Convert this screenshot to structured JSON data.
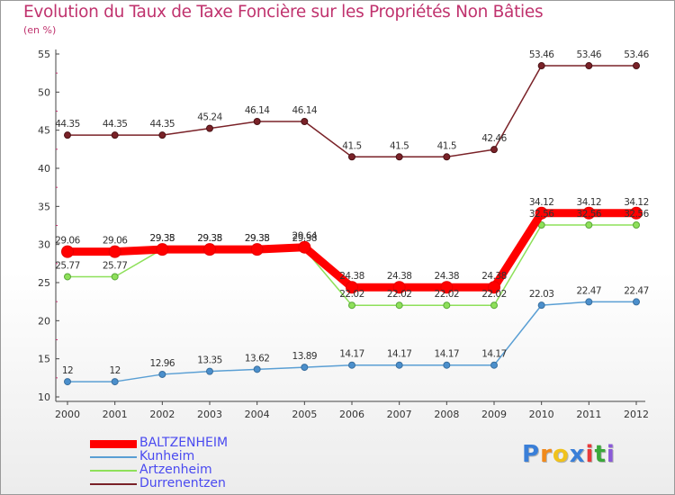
{
  "chart_data": {
    "type": "line",
    "title": "Evolution du Taux de Taxe Foncière sur les Propriétés Non Bâties",
    "ylabel": "(en %)",
    "xlabel": "",
    "ylim": [
      10,
      55
    ],
    "yticks": [
      10,
      15,
      20,
      25,
      30,
      35,
      40,
      45,
      50,
      55
    ],
    "x": [
      2000,
      2001,
      2002,
      2003,
      2004,
      2005,
      2006,
      2007,
      2008,
      2009,
      2010,
      2011,
      2012
    ],
    "grid": false,
    "legend_position": "bottom-left",
    "series": [
      {
        "name": "BALTZENHEIM",
        "color": "#ff0000",
        "values": [
          29.06,
          29.06,
          29.35,
          29.35,
          29.35,
          29.64,
          24.38,
          24.38,
          24.38,
          24.38,
          34.12,
          34.12,
          34.12
        ],
        "labels": [
          "29.06",
          "29.06",
          "29.35",
          "29.35",
          "29.35",
          "29.64",
          "24.38",
          "24.38",
          "24.38",
          "24.38",
          "34.12",
          "34.12",
          "34.12"
        ]
      },
      {
        "name": "Kunheim",
        "color": "#5a9fd4",
        "values": [
          12,
          12,
          12.96,
          13.35,
          13.62,
          13.89,
          14.17,
          14.17,
          14.17,
          14.17,
          22.03,
          22.47,
          22.47
        ],
        "labels": [
          "12",
          "12",
          "12.96",
          "13.35",
          "13.62",
          "13.89",
          "14.17",
          "14.17",
          "14.17",
          "14.17",
          "22.03",
          "22.47",
          "22.47"
        ]
      },
      {
        "name": "Artzenheim",
        "color": "#8ee05a",
        "values": [
          25.77,
          25.77,
          29.38,
          29.38,
          29.38,
          29.38,
          22.02,
          22.02,
          22.02,
          22.02,
          32.56,
          32.56,
          32.56
        ],
        "labels": [
          "25.77",
          "25.77",
          "29.38",
          "29.38",
          "29.38",
          "29.38",
          "22.02",
          "22.02",
          "22.02",
          "22.02",
          "32.56",
          "32.56",
          "32.56"
        ]
      },
      {
        "name": "Durrenentzen",
        "color": "#7a2228",
        "values": [
          44.35,
          44.35,
          44.35,
          45.24,
          46.14,
          46.14,
          41.5,
          41.5,
          41.5,
          42.46,
          53.46,
          53.46,
          53.46
        ],
        "labels": [
          "44.35",
          "44.35",
          "44.35",
          "45.24",
          "46.14",
          "46.14",
          "41.5",
          "41.5",
          "41.5",
          "42.46",
          "53.46",
          "53.46",
          "53.46"
        ]
      }
    ]
  },
  "logo": {
    "letters": [
      "P",
      "r",
      "o",
      "x",
      "i",
      "t",
      "i"
    ],
    "colors": [
      "#3a7fd8",
      "#f08a1c",
      "#f0c21c",
      "#3a7fd8",
      "#e83a3a",
      "#3aa83a",
      "#8a5ad8"
    ]
  }
}
